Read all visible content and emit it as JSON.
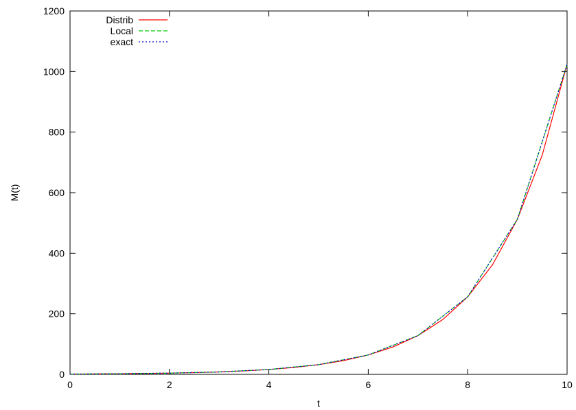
{
  "chart_data": {
    "type": "line",
    "title": "",
    "xlabel": "t",
    "ylabel": "M(t)",
    "xlim": [
      0,
      10
    ],
    "ylim": [
      0,
      1200
    ],
    "xticks": [
      0,
      2,
      4,
      6,
      8,
      10
    ],
    "yticks": [
      0,
      200,
      400,
      600,
      800,
      1000,
      1200
    ],
    "grid": false,
    "legend_position": "top-left",
    "x": [
      0,
      0.5,
      1,
      1.5,
      2,
      2.5,
      3,
      3.5,
      4,
      4.5,
      5,
      5.5,
      6,
      6.5,
      7,
      7.5,
      8,
      8.5,
      9,
      9.5,
      10
    ],
    "series": [
      {
        "name": "Distrib",
        "color": "#ff0000",
        "style": "solid",
        "values": [
          1,
          1.4,
          2,
          2.8,
          4,
          5.7,
          8,
          11.3,
          16,
          22.6,
          32,
          45.3,
          64,
          90.5,
          128,
          181,
          256,
          362,
          512,
          724,
          1024
        ]
      },
      {
        "name": "Local",
        "color": "#00cc00",
        "style": "dashed",
        "values": [
          1,
          1.5,
          2,
          3,
          4,
          6,
          8,
          12,
          16,
          24,
          32,
          48,
          64,
          96,
          128,
          192,
          256,
          384,
          512,
          768,
          1024
        ]
      },
      {
        "name": "exact",
        "color": "#0000cc",
        "style": "dotted",
        "values": [
          1,
          1.5,
          2,
          3,
          4,
          6,
          8,
          12,
          16,
          24,
          32,
          48,
          64,
          96,
          128,
          192,
          256,
          384,
          512,
          768,
          1024
        ]
      }
    ]
  }
}
